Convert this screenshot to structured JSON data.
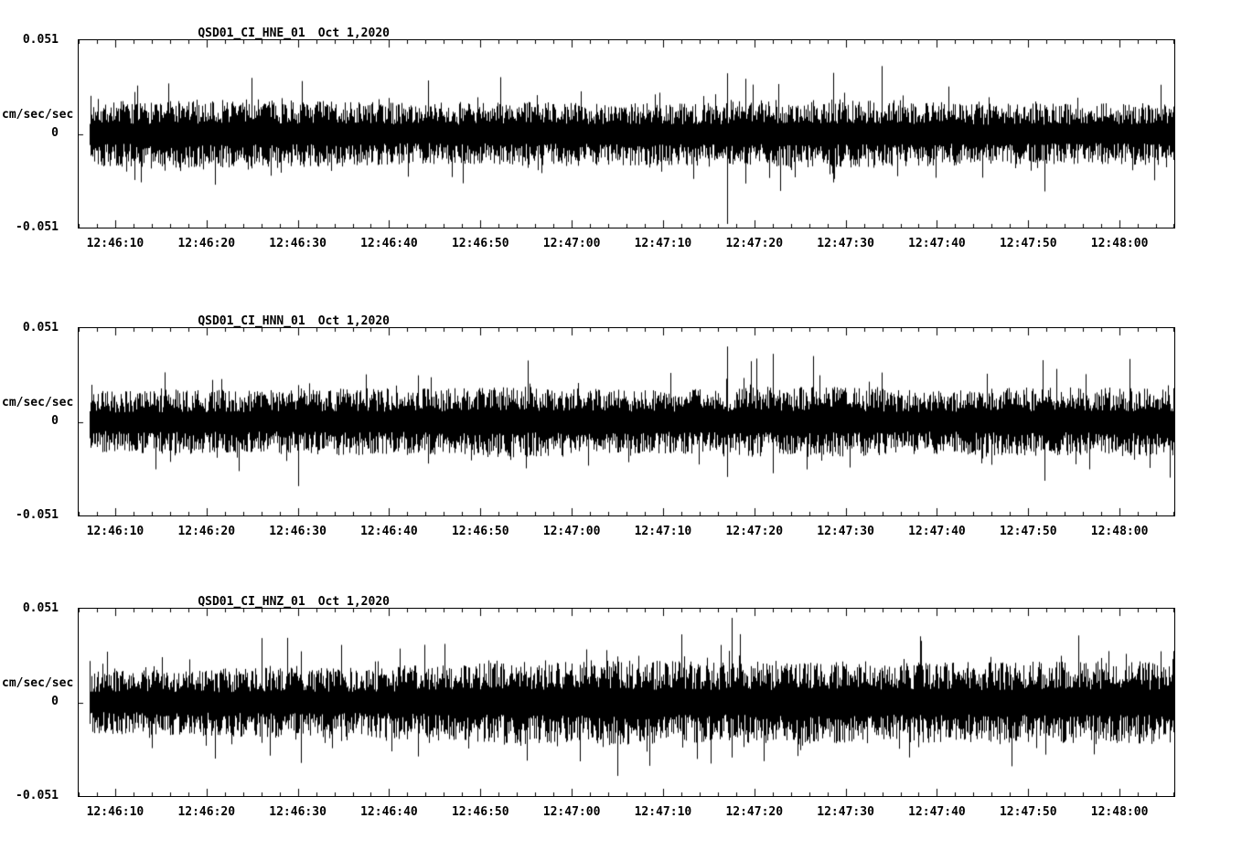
{
  "page": {
    "background": "#ffffff",
    "foreground": "#000000"
  },
  "chart_data": [
    {
      "type": "line",
      "title": "QSD01_CI_HNE_01",
      "date_label": "Oct 1,2020",
      "ylabel": "cm/sec/sec",
      "ylim": [
        -0.051,
        0.051
      ],
      "ytick_labels": [
        "0.051",
        "0",
        "-0.051"
      ],
      "xtick_labels": [
        "12:46:10",
        "12:46:20",
        "12:46:30",
        "12:46:40",
        "12:46:50",
        "12:47:00",
        "12:47:10",
        "12:47:20",
        "12:47:30",
        "12:47:40",
        "12:47:50",
        "12:48:00"
      ],
      "x_axis": {
        "duration_s": 120,
        "first_tick_offset_s": 4,
        "major_tick_s": 10,
        "minor_tick_s": 2
      },
      "grid": false,
      "legend": false,
      "line_color": "#000000",
      "waveform": {
        "kind": "seismic-noise",
        "seed": 7,
        "base_amplitude": 0.0105,
        "trace_start_s": 1.2,
        "envelope": [
          1.0,
          1.05,
          1.1,
          1.0,
          0.95,
          1.0,
          1.0,
          1.0,
          1.1,
          1.05,
          0.95,
          0.95,
          1.0
        ],
        "spikes": [
          {
            "t": 71,
            "up": 0.033,
            "down": -0.049
          },
          {
            "t": 73,
            "up": 0.03,
            "down": -0.027
          }
        ]
      }
    },
    {
      "type": "line",
      "title": "QSD01_CI_HNN_01",
      "date_label": "Oct 1,2020",
      "ylabel": "cm/sec/sec",
      "ylim": [
        -0.051,
        0.051
      ],
      "ytick_labels": [
        "0.051",
        "0",
        "-0.051"
      ],
      "xtick_labels": [
        "12:46:10",
        "12:46:20",
        "12:46:30",
        "12:46:40",
        "12:46:50",
        "12:47:00",
        "12:47:10",
        "12:47:20",
        "12:47:30",
        "12:47:40",
        "12:47:50",
        "12:48:00"
      ],
      "x_axis": {
        "duration_s": 120,
        "first_tick_offset_s": 4,
        "major_tick_s": 10,
        "minor_tick_s": 2
      },
      "grid": false,
      "legend": false,
      "line_color": "#000000",
      "waveform": {
        "kind": "seismic-noise",
        "seed": 19,
        "base_amplitude": 0.0105,
        "trace_start_s": 1.2,
        "envelope": [
          0.95,
          1.0,
          1.0,
          1.05,
          1.05,
          1.1,
          1.0,
          1.05,
          1.15,
          1.0,
          1.05,
          1.1,
          1.05
        ],
        "spikes": [
          {
            "t": 24,
            "up": 0.02,
            "down": -0.035
          },
          {
            "t": 71,
            "up": 0.041,
            "down": -0.03
          },
          {
            "t": 76,
            "up": 0.037,
            "down": -0.028
          }
        ]
      }
    },
    {
      "type": "line",
      "title": "QSD01_CI_HNZ_01",
      "date_label": "Oct 1,2020",
      "ylabel": "cm/sec/sec",
      "ylim": [
        -0.051,
        0.051
      ],
      "ytick_labels": [
        "0.051",
        "0",
        "-0.051"
      ],
      "xtick_labels": [
        "12:46:10",
        "12:46:20",
        "12:46:30",
        "12:46:40",
        "12:46:50",
        "12:47:00",
        "12:47:10",
        "12:47:20",
        "12:47:30",
        "12:47:40",
        "12:47:50",
        "12:48:00"
      ],
      "x_axis": {
        "duration_s": 120,
        "first_tick_offset_s": 4,
        "major_tick_s": 10,
        "minor_tick_s": 2
      },
      "grid": false,
      "legend": false,
      "line_color": "#000000",
      "waveform": {
        "kind": "seismic-noise",
        "seed": 43,
        "base_amplitude": 0.012,
        "trace_start_s": 1.2,
        "envelope": [
          0.85,
          0.9,
          0.95,
          0.95,
          1.05,
          1.15,
          1.15,
          1.1,
          1.15,
          1.1,
          1.1,
          1.15,
          1.1
        ],
        "spikes": [
          {
            "t": 20,
            "up": 0.035,
            "down": -0.022
          },
          {
            "t": 59,
            "up": 0.025,
            "down": -0.04
          },
          {
            "t": 71.5,
            "up": 0.046,
            "down": -0.03
          }
        ]
      }
    }
  ]
}
